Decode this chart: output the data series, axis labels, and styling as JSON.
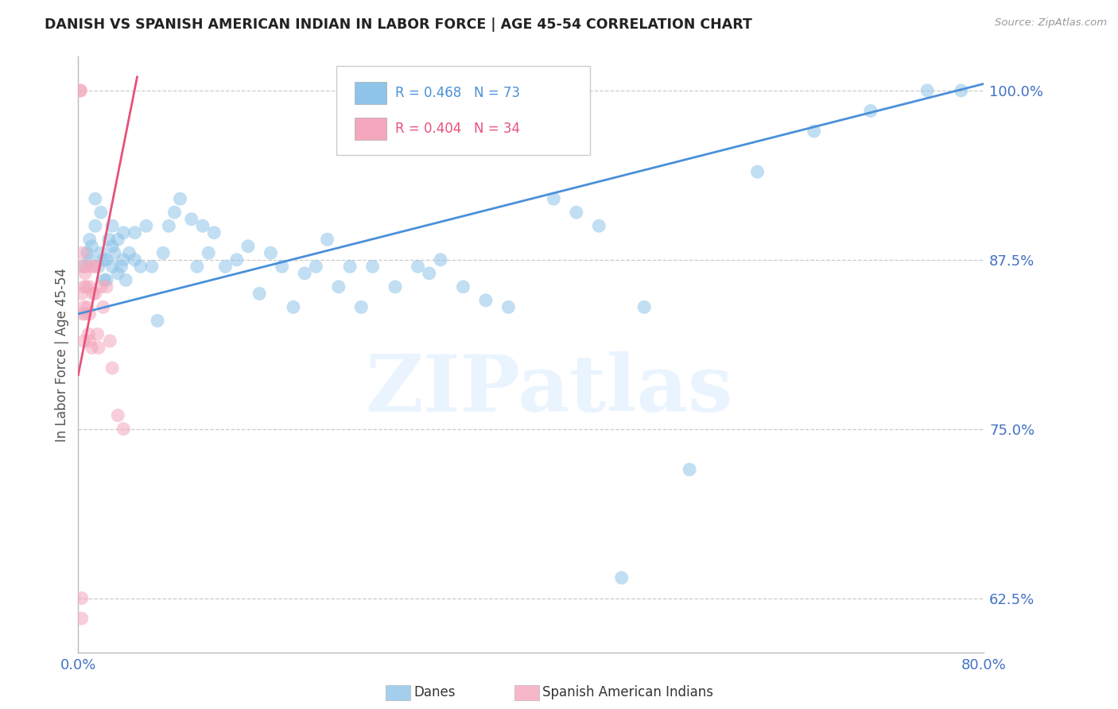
{
  "title": "DANISH VS SPANISH AMERICAN INDIAN IN LABOR FORCE | AGE 45-54 CORRELATION CHART",
  "source": "Source: ZipAtlas.com",
  "ylabel": "In Labor Force | Age 45-54",
  "x_min": 0.0,
  "x_max": 0.8,
  "y_min": 0.585,
  "y_max": 1.025,
  "yticks": [
    0.625,
    0.75,
    0.875,
    1.0
  ],
  "ytick_labels": [
    "62.5%",
    "75.0%",
    "87.5%",
    "100.0%"
  ],
  "xticks": [
    0.0,
    0.1,
    0.2,
    0.3,
    0.4,
    0.5,
    0.6,
    0.7,
    0.8
  ],
  "xtick_labels": [
    "0.0%",
    "",
    "",
    "",
    "",
    "",
    "",
    "",
    "80.0%"
  ],
  "blue_R": 0.468,
  "blue_N": 73,
  "pink_R": 0.404,
  "pink_N": 34,
  "blue_color": "#8ec4e8",
  "pink_color": "#f4a7bc",
  "blue_line_color": "#4a90d9",
  "pink_line_color": "#e8527a",
  "legend_blue_label": "Danes",
  "legend_pink_label": "Spanish American Indians",
  "watermark": "ZIPatlas",
  "background_color": "#ffffff",
  "grid_color": "#cccccc",
  "axis_color": "#bbbbbb",
  "title_color": "#222222",
  "tick_color": "#4472c4",
  "blue_x": [
    0.005,
    0.008,
    0.01,
    0.01,
    0.012,
    0.015,
    0.015,
    0.018,
    0.02,
    0.02,
    0.022,
    0.023,
    0.025,
    0.025,
    0.027,
    0.03,
    0.03,
    0.03,
    0.032,
    0.035,
    0.035,
    0.038,
    0.04,
    0.04,
    0.042,
    0.045,
    0.05,
    0.05,
    0.055,
    0.06,
    0.065,
    0.07,
    0.075,
    0.08,
    0.085,
    0.09,
    0.1,
    0.105,
    0.11,
    0.115,
    0.12,
    0.13,
    0.14,
    0.15,
    0.16,
    0.17,
    0.18,
    0.19,
    0.2,
    0.21,
    0.22,
    0.23,
    0.24,
    0.25,
    0.26,
    0.28,
    0.3,
    0.31,
    0.32,
    0.34,
    0.36,
    0.38,
    0.42,
    0.44,
    0.46,
    0.48,
    0.5,
    0.54,
    0.6,
    0.65,
    0.7,
    0.75,
    0.78
  ],
  "blue_y": [
    0.87,
    0.88,
    0.875,
    0.89,
    0.885,
    0.9,
    0.92,
    0.87,
    0.88,
    0.91,
    0.875,
    0.86,
    0.86,
    0.875,
    0.89,
    0.87,
    0.885,
    0.9,
    0.88,
    0.865,
    0.89,
    0.87,
    0.875,
    0.895,
    0.86,
    0.88,
    0.875,
    0.895,
    0.87,
    0.9,
    0.87,
    0.83,
    0.88,
    0.9,
    0.91,
    0.92,
    0.905,
    0.87,
    0.9,
    0.88,
    0.895,
    0.87,
    0.875,
    0.885,
    0.85,
    0.88,
    0.87,
    0.84,
    0.865,
    0.87,
    0.89,
    0.855,
    0.87,
    0.84,
    0.87,
    0.855,
    0.87,
    0.865,
    0.875,
    0.855,
    0.845,
    0.84,
    0.92,
    0.91,
    0.9,
    0.64,
    0.84,
    0.72,
    0.94,
    0.97,
    0.985,
    1.0,
    1.0
  ],
  "pink_x": [
    0.002,
    0.002,
    0.003,
    0.003,
    0.004,
    0.004,
    0.005,
    0.005,
    0.005,
    0.006,
    0.006,
    0.007,
    0.008,
    0.008,
    0.009,
    0.01,
    0.01,
    0.01,
    0.012,
    0.013,
    0.013,
    0.015,
    0.015,
    0.017,
    0.018,
    0.02,
    0.022,
    0.025,
    0.028,
    0.03,
    0.035,
    0.04,
    0.003,
    0.003
  ],
  "pink_y": [
    1.0,
    1.0,
    0.87,
    0.85,
    0.88,
    0.835,
    0.855,
    0.84,
    0.815,
    0.865,
    0.835,
    0.855,
    0.87,
    0.84,
    0.82,
    0.855,
    0.835,
    0.815,
    0.81,
    0.87,
    0.85,
    0.87,
    0.85,
    0.82,
    0.81,
    0.855,
    0.84,
    0.855,
    0.815,
    0.795,
    0.76,
    0.75,
    0.625,
    0.61
  ],
  "blue_line_x0": 0.0,
  "blue_line_x1": 0.8,
  "blue_line_y0": 0.835,
  "blue_line_y1": 1.005,
  "pink_line_x0": 0.0,
  "pink_line_x1": 0.052,
  "pink_line_y0": 0.79,
  "pink_line_y1": 1.01
}
